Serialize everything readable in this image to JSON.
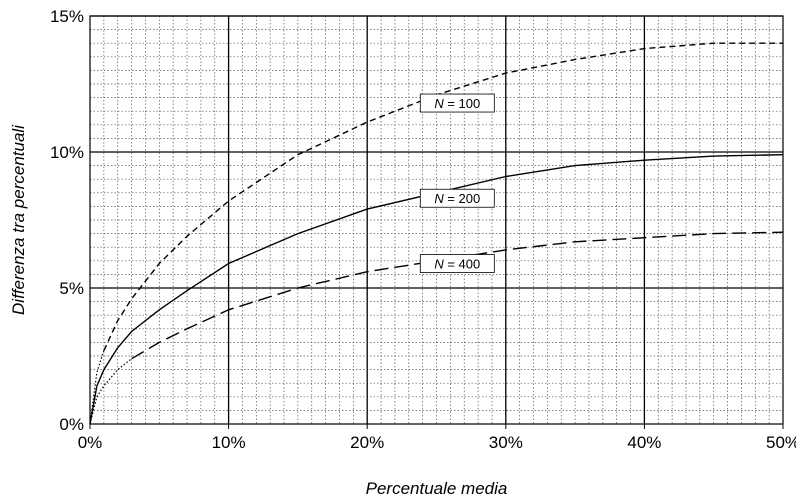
{
  "chart_data": {
    "type": "line",
    "xlabel": "Percentuale media",
    "ylabel": "Differenza tra percentuali",
    "xlim": [
      0,
      50
    ],
    "ylim": [
      0,
      15
    ],
    "x_ticks": [
      "0%",
      "10%",
      "20%",
      "30%",
      "40%",
      "50%"
    ],
    "y_ticks": [
      "0%",
      "5%",
      "10%",
      "15%"
    ],
    "x_tick_values": [
      0,
      10,
      20,
      30,
      40,
      50
    ],
    "y_tick_values": [
      0,
      5,
      10,
      15
    ],
    "grid": "major solid, minor dotted",
    "series": [
      {
        "name": "N = 100",
        "label_var": "N",
        "label_rest": " = 100",
        "style": "short-dash",
        "dotted_until_x": 1,
        "x": [
          0,
          0.5,
          1,
          2,
          3,
          5,
          7,
          10,
          15,
          20,
          25,
          30,
          35,
          40,
          45,
          50
        ],
        "y": [
          0,
          1.9,
          2.7,
          3.8,
          4.6,
          5.9,
          6.9,
          8.2,
          9.9,
          11.1,
          12.1,
          12.9,
          13.4,
          13.8,
          14.0,
          14.0
        ]
      },
      {
        "name": "N = 200",
        "label_var": "N",
        "label_rest": " = 200",
        "style": "solid",
        "dotted_until_x": 0,
        "x": [
          0,
          0.5,
          1,
          2,
          3,
          5,
          7,
          10,
          15,
          20,
          25,
          30,
          35,
          40,
          45,
          50
        ],
        "y": [
          0,
          1.4,
          2.0,
          2.8,
          3.4,
          4.2,
          4.9,
          5.9,
          7.0,
          7.9,
          8.5,
          9.1,
          9.5,
          9.7,
          9.85,
          9.9
        ]
      },
      {
        "name": "N = 400",
        "label_var": "N",
        "label_rest": " = 400",
        "style": "long-dash",
        "dotted_until_x": 3,
        "x": [
          0,
          0.5,
          1,
          2,
          3,
          5,
          7,
          10,
          15,
          20,
          25,
          30,
          35,
          40,
          45,
          50
        ],
        "y": [
          0,
          1.0,
          1.4,
          2.0,
          2.4,
          3.0,
          3.5,
          4.2,
          5.0,
          5.6,
          6.0,
          6.4,
          6.7,
          6.85,
          7.0,
          7.05
        ]
      }
    ],
    "labels": [
      {
        "series": 0,
        "x": 26.5,
        "y": 11.8
      },
      {
        "series": 1,
        "x": 26.5,
        "y": 8.3
      },
      {
        "series": 2,
        "x": 26.5,
        "y": 5.9
      }
    ]
  }
}
